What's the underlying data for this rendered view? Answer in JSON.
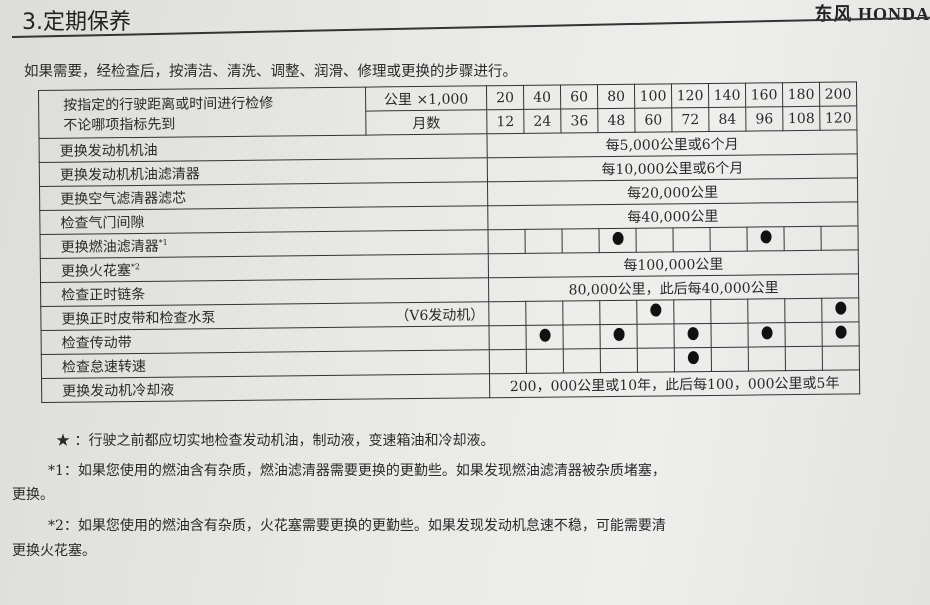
{
  "header": {
    "title": "3.定期保养",
    "brand": "东风 HONDA"
  },
  "intro": "如果需要，经检查后，按清洁、清洗、调整、润滑、修理或更换的步骤进行。",
  "table": {
    "header_label_1": "按指定的行驶距离或时间进行检修",
    "header_label_2": "不论哪项指标先到",
    "unit_km": "公里 ×1,000",
    "unit_month": "月数",
    "km": [
      "20",
      "40",
      "60",
      "80",
      "100",
      "120",
      "140",
      "160",
      "180",
      "200"
    ],
    "months": [
      "12",
      "24",
      "36",
      "48",
      "60",
      "72",
      "84",
      "96",
      "108",
      "120"
    ],
    "rows": [
      {
        "label": "更换发动机机油",
        "text": "每5,000公里或6个月"
      },
      {
        "label": "更换发动机机油滤清器",
        "text": "每10,000公里或6个月"
      },
      {
        "label": "更换空气滤清器滤芯",
        "text": "每20,000公里"
      },
      {
        "label": "检查气门间隙",
        "text": "每40,000公里"
      },
      {
        "label": "更换燃油滤清器",
        "sup": "*1",
        "marks": [
          0,
          0,
          0,
          1,
          0,
          0,
          0,
          1,
          0,
          0
        ]
      },
      {
        "label": "更换火花塞",
        "sup": "*2",
        "text": "每100,000公里"
      },
      {
        "label": "检查正时链条",
        "text": "80,000公里，此后每40,000公里"
      },
      {
        "label": "更换正时皮带和检查水泵",
        "note": "（V6发动机）",
        "marks": [
          0,
          0,
          0,
          0,
          1,
          0,
          0,
          0,
          0,
          1
        ]
      },
      {
        "label": "检查传动带",
        "marks": [
          0,
          1,
          0,
          1,
          0,
          1,
          0,
          1,
          0,
          1
        ]
      },
      {
        "label": "检查怠速转速",
        "marks": [
          0,
          0,
          0,
          0,
          0,
          1,
          0,
          0,
          0,
          0
        ]
      },
      {
        "label": "更换发动机冷却液",
        "text": "200，000公里或10年，此后每100，000公里或5年"
      }
    ]
  },
  "notes": [
    "★ ：行驶之前都应切实地检查发动机油，制动液，变速箱油和冷却液。",
    "*1：如果您使用的燃油含有杂质，燃油滤清器需要更换的更勤些。如果发现燃油滤清器被杂质堵塞，",
    "更换。",
    "*2：如果您使用的燃油含有杂质，火花塞需要更换的更勤些。如果发现发动机怠速不稳，可能需要清",
    "更换火花塞。"
  ]
}
